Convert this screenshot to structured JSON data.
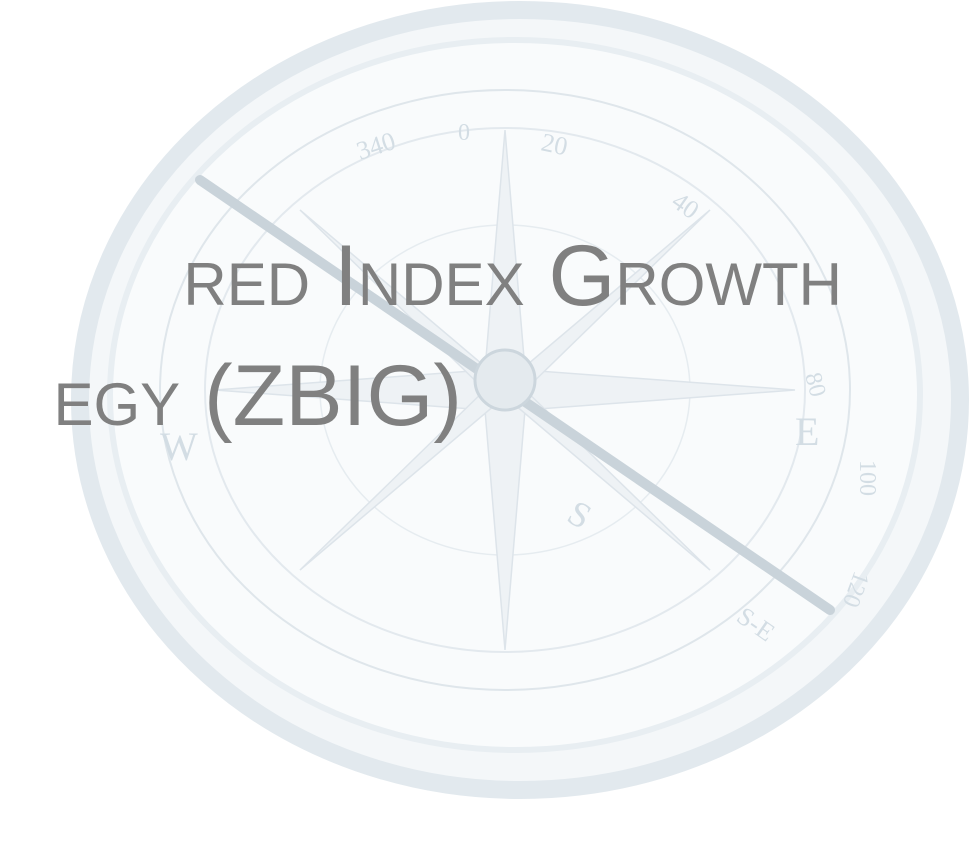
{
  "title_lines": [
    "red Index Growth",
    "egy (ZBIG)"
  ],
  "compass_labels": [
    "340",
    "0",
    "20",
    "40",
    "80",
    "100",
    "120",
    "W",
    "E",
    "S",
    "S-E"
  ]
}
